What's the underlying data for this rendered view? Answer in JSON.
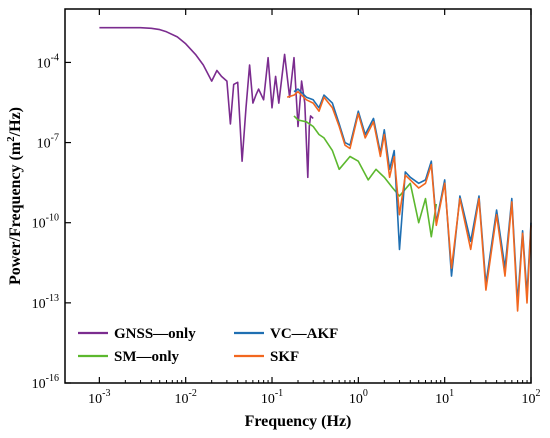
{
  "chart_data": {
    "type": "line",
    "title": "",
    "xlabel": "Frequency (Hz)",
    "ylabel_main": "Power/Frequency (m",
    "ylabel_sup": "2",
    "ylabel_end": "/Hz)",
    "xscale": "log",
    "yscale": "log",
    "xlim": [
      0.0004,
      100
    ],
    "ylim": [
      1e-16,
      0.01
    ],
    "xticks": [
      {
        "value": 0.001,
        "base": "10",
        "exp": "-3"
      },
      {
        "value": 0.01,
        "base": "10",
        "exp": "-2"
      },
      {
        "value": 0.1,
        "base": "10",
        "exp": "-1"
      },
      {
        "value": 1,
        "base": "10",
        "exp": "0"
      },
      {
        "value": 10,
        "base": "10",
        "exp": "1"
      },
      {
        "value": 100,
        "base": "10",
        "exp": "2"
      }
    ],
    "yticks": [
      {
        "value": 0.0001,
        "base": "10",
        "exp": "-4"
      },
      {
        "value": 1e-07,
        "base": "10",
        "exp": "-7"
      },
      {
        "value": 1e-10,
        "base": "10",
        "exp": "-10"
      },
      {
        "value": 1e-13,
        "base": "10",
        "exp": "-13"
      },
      {
        "value": 1e-16,
        "base": "10",
        "exp": "-16"
      }
    ],
    "grid": false,
    "legend_position": "lower-left",
    "series": [
      {
        "name": "GNSS—only",
        "color": "#7b2c8f",
        "x": [
          0.001,
          0.002,
          0.003,
          0.004,
          0.005,
          0.006,
          0.008,
          0.01,
          0.013,
          0.016,
          0.02,
          0.023,
          0.026,
          0.03,
          0.033,
          0.036,
          0.04,
          0.045,
          0.05,
          0.055,
          0.06,
          0.065,
          0.07,
          0.08,
          0.09,
          0.1,
          0.11,
          0.12,
          0.14,
          0.16,
          0.18,
          0.2,
          0.22,
          0.24,
          0.26,
          0.27,
          0.28,
          0.3
        ],
        "y": [
          0.002,
          0.002,
          0.002,
          0.0019,
          0.0017,
          0.0014,
          0.0009,
          0.0005,
          0.0002,
          8e-05,
          2e-05,
          5e-05,
          3e-05,
          2e-05,
          5e-07,
          1.5e-05,
          1.8e-05,
          2e-08,
          2e-06,
          8e-05,
          3e-06,
          6e-06,
          1e-05,
          4e-06,
          0.00015,
          2e-06,
          3e-05,
          3e-06,
          0.0002,
          5e-06,
          0.00015,
          4e-07,
          2e-05,
          3e-06,
          5e-09,
          4e-07,
          1e-06,
          8e-07
        ]
      },
      {
        "name": "VC—AKF",
        "color": "#1f6fb2",
        "x": [
          0.18,
          0.2,
          0.25,
          0.3,
          0.35,
          0.4,
          0.5,
          0.6,
          0.7,
          0.8,
          1.0,
          1.2,
          1.5,
          1.8,
          2.0,
          2.3,
          2.6,
          3.0,
          3.5,
          4.0,
          5.0,
          6.0,
          7.0,
          8.0,
          10,
          12,
          15,
          20,
          25,
          30,
          40,
          50,
          60,
          70,
          80,
          90,
          100
        ],
        "y": [
          8e-06,
          1e-05,
          5e-06,
          4e-06,
          2e-06,
          6e-06,
          3e-06,
          5e-07,
          1e-07,
          8e-08,
          1.5e-06,
          2e-07,
          8e-07,
          4e-08,
          3e-07,
          1e-08,
          5e-08,
          1e-11,
          8e-09,
          5e-09,
          3e-09,
          4e-09,
          2e-08,
          1e-10,
          4e-09,
          1e-12,
          1e-09,
          2e-11,
          1e-09,
          5e-13,
          3e-10,
          2e-12,
          8e-10,
          1e-13,
          5e-11,
          2e-13,
          1e-10
        ]
      },
      {
        "name": "SM—only",
        "color": "#5cb82e",
        "x": [
          0.18,
          0.2,
          0.25,
          0.3,
          0.35,
          0.4,
          0.5,
          0.6,
          0.8,
          1.0,
          1.3,
          1.6,
          2.0,
          2.5,
          3.0,
          4.0,
          5.0,
          6.0,
          7.0,
          8.0
        ],
        "y": [
          1e-06,
          7e-07,
          6e-07,
          4e-07,
          2e-07,
          1.5e-07,
          5e-08,
          1e-08,
          3e-08,
          2e-08,
          4e-09,
          1e-08,
          5e-09,
          2e-09,
          1e-09,
          3e-09,
          1e-10,
          8e-10,
          3e-11,
          5e-10
        ]
      },
      {
        "name": "SKF",
        "color": "#f2671f",
        "x": [
          0.15,
          0.18,
          0.2,
          0.25,
          0.3,
          0.35,
          0.4,
          0.5,
          0.6,
          0.7,
          0.8,
          1.0,
          1.2,
          1.5,
          1.8,
          2.0,
          2.3,
          2.6,
          3.0,
          3.5,
          4.0,
          5.0,
          6.0,
          7.0,
          8.0,
          10,
          12,
          15,
          20,
          25,
          30,
          40,
          50,
          60,
          70,
          80,
          90,
          100
        ],
        "y": [
          5e-06,
          6e-06,
          8e-06,
          4e-06,
          3e-06,
          1.5e-06,
          5e-06,
          2e-06,
          4e-07,
          8e-08,
          6e-08,
          1.2e-06,
          1.5e-07,
          6e-07,
          3e-08,
          2e-07,
          5e-09,
          3e-08,
          2e-10,
          6e-09,
          4e-09,
          2e-09,
          3e-09,
          1.5e-08,
          8e-11,
          3e-09,
          2e-12,
          8e-10,
          1e-11,
          8e-10,
          3e-13,
          2e-10,
          1e-12,
          6e-10,
          5e-14,
          4e-11,
          1e-13,
          8e-11
        ]
      }
    ]
  }
}
